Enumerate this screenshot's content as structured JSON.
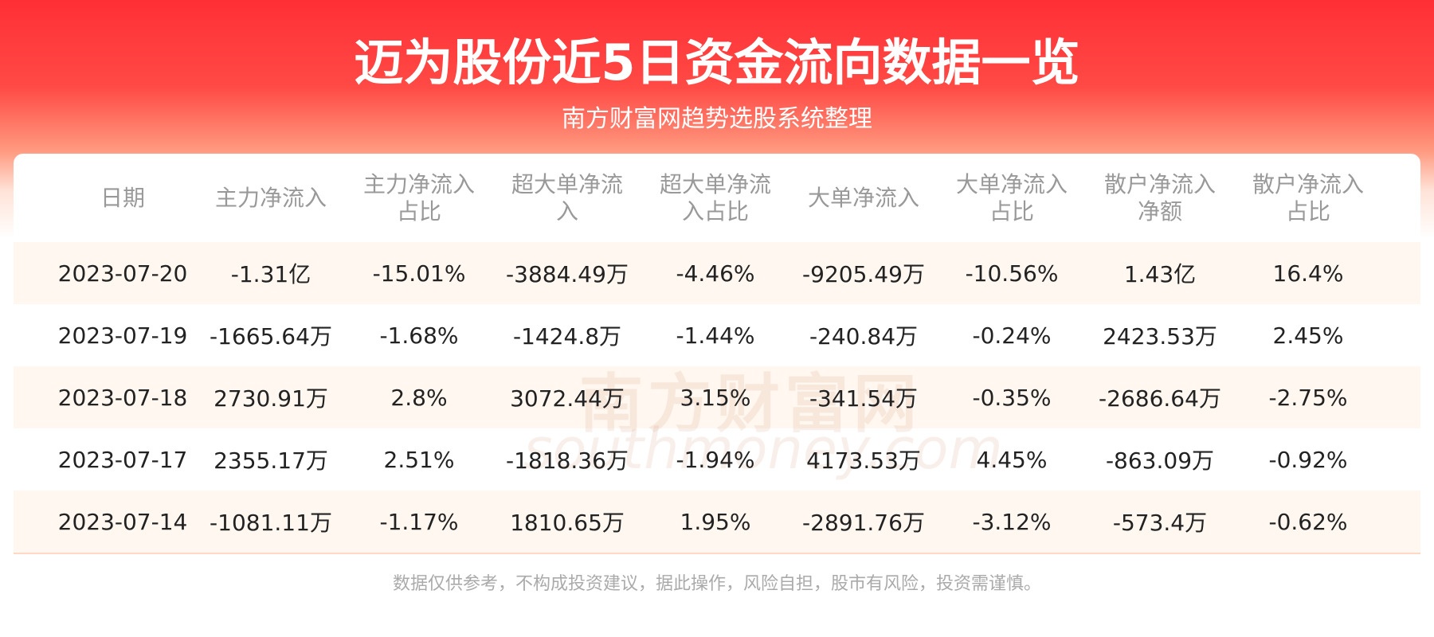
{
  "header": {
    "title": "迈为股份近5日资金流向数据一览",
    "subtitle": "南方财富网趋势选股系统整理"
  },
  "watermark": {
    "cn": "南方财富网",
    "en": "southmoney.com"
  },
  "table": {
    "columns": [
      "日期",
      "主力净流入",
      "主力净流入占比",
      "超大单净流入",
      "超大单净流入占比",
      "大单净流入",
      "大单净流入占比",
      "散户净流入净额",
      "散户净流入占比"
    ],
    "rows": [
      [
        "2023-07-20",
        "-1.31亿",
        "-15.01%",
        "-3884.49万",
        "-4.46%",
        "-9205.49万",
        "-10.56%",
        "1.43亿",
        "16.4%"
      ],
      [
        "2023-07-19",
        "-1665.64万",
        "-1.68%",
        "-1424.8万",
        "-1.44%",
        "-240.84万",
        "-0.24%",
        "2423.53万",
        "2.45%"
      ],
      [
        "2023-07-18",
        "2730.91万",
        "2.8%",
        "3072.44万",
        "3.15%",
        "-341.54万",
        "-0.35%",
        "-2686.64万",
        "-2.75%"
      ],
      [
        "2023-07-17",
        "2355.17万",
        "2.51%",
        "-1818.36万",
        "-1.94%",
        "4173.53万",
        "4.45%",
        "-863.09万",
        "-0.92%"
      ],
      [
        "2023-07-14",
        "-1081.11万",
        "-1.17%",
        "1810.65万",
        "1.95%",
        "-2891.76万",
        "-3.12%",
        "-573.4万",
        "-0.62%"
      ]
    ]
  },
  "footer": {
    "disclaimer": "数据仅供参考，不构成投资建议，据此操作，风险自担，股市有风险，投资需谨慎。"
  }
}
